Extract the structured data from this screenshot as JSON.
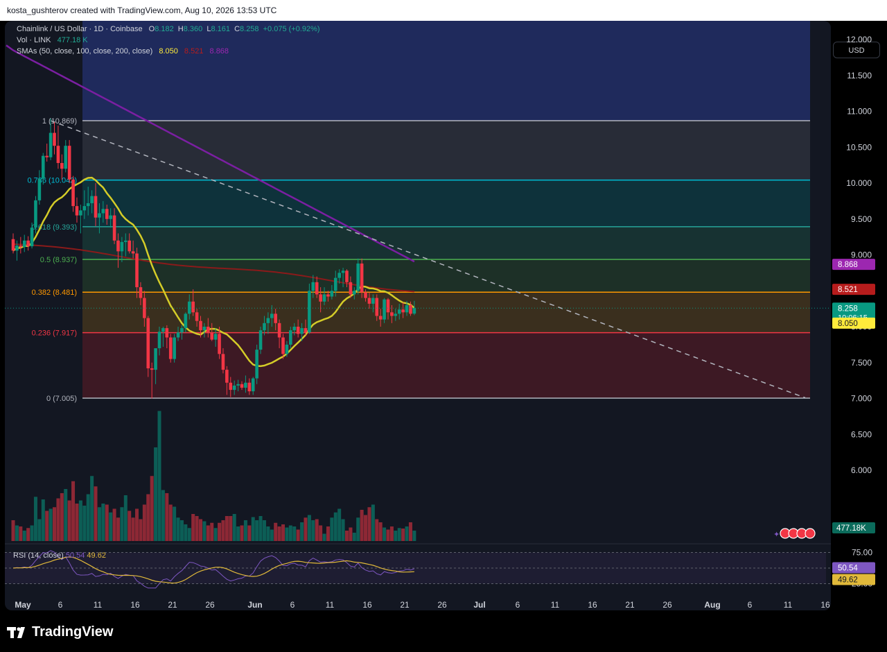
{
  "header": {
    "created_by": "kosta_gushterov created with TradingView.com, Aug 10, 2026 13:53 UTC"
  },
  "legend": {
    "symbol": "Chainlink / US Dollar · 1D · Coinbase",
    "o_label": "O",
    "o": "8.182",
    "h_label": "H",
    "h": "8.360",
    "l_label": "L",
    "l": "8.161",
    "c_label": "C",
    "c": "8.258",
    "change": "+0.075 (+0.92%)",
    "vol_label": "Vol · LINK",
    "vol": "477.18 K",
    "sma_label": "SMAs (50, close, 100, close, 200, close)",
    "sma50": "8.050",
    "sma100": "8.521",
    "sma200": "8.868"
  },
  "currency": "USD",
  "brand": "TradingView",
  "chart_data": {
    "type": "candlestick",
    "symbol": "LINK/USD",
    "timeframe": "1D",
    "x_ticks": [
      "May",
      "6",
      "11",
      "16",
      "21",
      "26",
      "Jun",
      "6",
      "11",
      "16",
      "21",
      "26",
      "Jul",
      "6",
      "11",
      "16",
      "21",
      "26",
      "Aug",
      "6",
      "11",
      "16"
    ],
    "y_ticks": [
      "12.000",
      "11.500",
      "11.000",
      "10.500",
      "10.000",
      "9.500",
      "9.000",
      "8.500",
      "8.000",
      "7.500",
      "7.000",
      "6.500",
      "6.000"
    ],
    "ylim": [
      5.75,
      12.6
    ],
    "fib_levels": [
      {
        "label": "1 (10.869)",
        "value": 10.869
      },
      {
        "label": "0.786 (10.042)",
        "value": 10.042
      },
      {
        "label": "0.618 (9.393)",
        "value": 9.393
      },
      {
        "label": "0.5 (8.937)",
        "value": 8.937
      },
      {
        "label": "0.382 (8.481)",
        "value": 8.481
      },
      {
        "label": "0.236 (7.917)",
        "value": 7.917
      },
      {
        "label": "0 (7.005)",
        "value": 7.005
      }
    ],
    "trendline": {
      "start": [
        10,
        10.87
      ],
      "end": [
        107,
        7.01
      ]
    },
    "price_tags": [
      {
        "text": "8.868",
        "value": 8.868,
        "color": "#9c27b0"
      },
      {
        "text": "8.521",
        "value": 8.521,
        "color": "#b71c1c"
      },
      {
        "text": "8.258",
        "sub": "10:06:15",
        "value": 8.258,
        "color": "#089981"
      },
      {
        "text": "8.050",
        "value": 8.05,
        "color": "#ffeb3b"
      }
    ],
    "volume_tag": "477.18K",
    "rsi": {
      "label": "RSI (14, close)",
      "value": "50.54",
      "ma": "49.62",
      "ticks": [
        "75.00",
        "25.00"
      ]
    },
    "candles": [
      [
        9.22,
        9.3,
        9.02,
        9.06
      ],
      [
        9.06,
        9.2,
        8.92,
        9.13
      ],
      [
        9.13,
        9.25,
        9.02,
        9.11
      ],
      [
        9.11,
        9.28,
        9.04,
        9.2
      ],
      [
        9.2,
        9.26,
        9.06,
        9.12
      ],
      [
        9.12,
        9.45,
        9.09,
        9.38
      ],
      [
        9.38,
        9.82,
        9.3,
        9.76
      ],
      [
        9.76,
        10.18,
        9.7,
        10.06
      ],
      [
        10.06,
        10.42,
        9.98,
        10.38
      ],
      [
        10.38,
        10.55,
        10.3,
        10.36
      ],
      [
        10.36,
        10.9,
        10.32,
        10.7
      ],
      [
        10.7,
        10.85,
        10.4,
        10.52
      ],
      [
        10.52,
        10.8,
        10.2,
        10.28
      ],
      [
        10.28,
        10.4,
        10.05,
        10.2
      ],
      [
        10.2,
        10.6,
        10.15,
        10.52
      ],
      [
        10.52,
        10.6,
        10.0,
        10.05
      ],
      [
        10.05,
        10.1,
        9.6,
        9.68
      ],
      [
        9.68,
        9.8,
        9.45,
        9.55
      ],
      [
        9.55,
        9.7,
        9.3,
        9.62
      ],
      [
        9.62,
        9.9,
        9.5,
        9.68
      ],
      [
        9.68,
        9.95,
        9.55,
        9.72
      ],
      [
        9.72,
        9.9,
        9.58,
        9.82
      ],
      [
        9.82,
        10.0,
        9.4,
        9.52
      ],
      [
        9.52,
        9.72,
        9.3,
        9.58
      ],
      [
        9.58,
        9.75,
        9.45,
        9.64
      ],
      [
        9.64,
        9.7,
        9.42,
        9.5
      ],
      [
        9.5,
        9.65,
        9.38,
        9.55
      ],
      [
        9.55,
        9.65,
        9.15,
        9.2
      ],
      [
        9.2,
        9.3,
        8.82,
        9.05
      ],
      [
        9.05,
        9.25,
        8.9,
        9.18
      ],
      [
        9.18,
        9.3,
        8.98,
        9.2
      ],
      [
        9.2,
        9.3,
        9.02,
        9.05
      ],
      [
        9.05,
        9.2,
        8.95,
        9.02
      ],
      [
        9.02,
        9.1,
        8.4,
        8.55
      ],
      [
        8.55,
        8.62,
        8.3,
        8.4
      ],
      [
        8.4,
        8.5,
        8.0,
        8.12
      ],
      [
        8.12,
        8.15,
        7.3,
        7.42
      ],
      [
        7.42,
        7.5,
        7.0,
        7.4
      ],
      [
        7.4,
        7.7,
        7.2,
        7.7
      ],
      [
        7.7,
        8.0,
        7.6,
        7.93
      ],
      [
        7.93,
        8.0,
        7.72,
        7.98
      ],
      [
        7.98,
        8.02,
        7.7,
        7.85
      ],
      [
        7.85,
        7.9,
        7.5,
        7.55
      ],
      [
        7.55,
        7.9,
        7.5,
        7.85
      ],
      [
        7.85,
        8.0,
        7.8,
        7.92
      ],
      [
        7.92,
        8.02,
        7.82,
        7.98
      ],
      [
        7.98,
        8.2,
        7.92,
        8.18
      ],
      [
        8.18,
        8.45,
        8.1,
        8.35
      ],
      [
        8.35,
        8.52,
        8.15,
        8.2
      ],
      [
        8.2,
        8.25,
        8.0,
        8.08
      ],
      [
        8.08,
        8.15,
        7.85,
        7.95
      ],
      [
        7.95,
        8.05,
        7.85,
        8.0
      ],
      [
        8.0,
        8.12,
        7.85,
        7.92
      ],
      [
        7.92,
        8.05,
        7.8,
        7.82
      ],
      [
        7.82,
        7.98,
        7.72,
        7.9
      ],
      [
        7.9,
        8.0,
        7.55,
        7.62
      ],
      [
        7.62,
        7.7,
        7.35,
        7.4
      ],
      [
        7.4,
        7.45,
        7.05,
        7.22
      ],
      [
        7.22,
        7.3,
        7.02,
        7.12
      ],
      [
        7.12,
        7.25,
        7.05,
        7.18
      ],
      [
        7.18,
        7.26,
        7.1,
        7.2
      ],
      [
        7.2,
        7.24,
        7.12,
        7.15
      ],
      [
        7.15,
        7.32,
        7.08,
        7.22
      ],
      [
        7.22,
        7.28,
        7.05,
        7.1
      ],
      [
        7.1,
        7.3,
        7.05,
        7.28
      ],
      [
        7.28,
        7.75,
        7.2,
        7.68
      ],
      [
        7.68,
        8.0,
        7.62,
        7.95
      ],
      [
        7.95,
        8.15,
        7.88,
        8.05
      ],
      [
        8.05,
        8.2,
        7.9,
        8.12
      ],
      [
        8.12,
        8.3,
        8.0,
        8.18
      ],
      [
        8.18,
        8.25,
        7.95,
        8.05
      ],
      [
        8.05,
        8.1,
        7.7,
        7.85
      ],
      [
        7.85,
        7.9,
        7.55,
        7.62
      ],
      [
        7.62,
        7.8,
        7.58,
        7.75
      ],
      [
        7.75,
        8.0,
        7.7,
        7.95
      ],
      [
        7.95,
        8.05,
        7.88,
        8.0
      ],
      [
        8.0,
        8.1,
        7.85,
        7.9
      ],
      [
        7.9,
        8.05,
        7.8,
        7.98
      ],
      [
        7.98,
        8.1,
        7.88,
        7.92
      ],
      [
        7.92,
        8.6,
        7.9,
        8.5
      ],
      [
        8.5,
        8.72,
        8.4,
        8.62
      ],
      [
        8.62,
        8.7,
        8.4,
        8.45
      ],
      [
        8.45,
        8.55,
        8.2,
        8.35
      ],
      [
        8.35,
        8.55,
        8.3,
        8.45
      ],
      [
        8.45,
        8.5,
        8.35,
        8.42
      ],
      [
        8.42,
        8.58,
        8.38,
        8.5
      ],
      [
        8.5,
        8.78,
        8.42,
        8.68
      ],
      [
        8.68,
        8.8,
        8.6,
        8.75
      ],
      [
        8.75,
        8.82,
        8.55,
        8.78
      ],
      [
        8.78,
        8.8,
        8.55,
        8.62
      ],
      [
        8.62,
        8.7,
        8.4,
        8.45
      ],
      [
        8.45,
        8.55,
        8.38,
        8.5
      ],
      [
        8.5,
        8.95,
        8.45,
        8.88
      ],
      [
        8.88,
        8.95,
        8.4,
        8.48
      ],
      [
        8.48,
        8.52,
        8.35,
        8.4
      ],
      [
        8.4,
        8.48,
        8.25,
        8.32
      ],
      [
        8.32,
        8.45,
        8.2,
        8.4
      ],
      [
        8.4,
        8.45,
        8.08,
        8.15
      ],
      [
        8.15,
        8.25,
        8.0,
        8.1
      ],
      [
        8.1,
        8.4,
        8.05,
        8.38
      ],
      [
        8.38,
        8.4,
        8.1,
        8.2
      ],
      [
        8.2,
        8.3,
        8.05,
        8.15
      ],
      [
        8.15,
        8.25,
        8.08,
        8.18
      ],
      [
        8.18,
        8.32,
        8.1,
        8.24
      ],
      [
        8.24,
        8.34,
        8.12,
        8.2
      ],
      [
        8.2,
        8.36,
        8.15,
        8.3
      ],
      [
        8.3,
        8.35,
        8.15,
        8.18
      ],
      [
        8.182,
        8.36,
        8.161,
        8.258
      ]
    ],
    "volumes": [
      0.4,
      0.3,
      0.28,
      0.2,
      0.25,
      0.3,
      0.85,
      0.42,
      0.8,
      0.58,
      0.62,
      0.65,
      0.82,
      0.92,
      1.0,
      0.78,
      1.15,
      0.72,
      0.78,
      0.68,
      0.9,
      1.25,
      1.05,
      0.65,
      0.72,
      0.7,
      0.55,
      0.62,
      0.45,
      0.65,
      0.88,
      0.58,
      0.45,
      0.62,
      0.42,
      0.7,
      0.9,
      1.25,
      1.8,
      2.5,
      0.98,
      0.92,
      0.7,
      0.66,
      0.45,
      0.4,
      0.32,
      0.25,
      0.52,
      0.48,
      0.42,
      0.38,
      0.3,
      0.35,
      0.25,
      0.35,
      0.4,
      0.48,
      0.48,
      0.52,
      0.28,
      0.3,
      0.4,
      0.3,
      0.46,
      0.4,
      0.48,
      0.4,
      0.28,
      0.22,
      0.35,
      0.28,
      0.32,
      0.26,
      0.3,
      0.28,
      0.22,
      0.36,
      0.45,
      0.5,
      0.4,
      0.42,
      0.3,
      0.14,
      0.28,
      0.45,
      0.55,
      0.62,
      0.42,
      0.2,
      0.26,
      0.16,
      0.45,
      0.6,
      0.5,
      0.65,
      0.7,
      0.42,
      0.36,
      0.26,
      0.22,
      0.28,
      0.2,
      0.25,
      0.24,
      0.28,
      0.36,
      0.2
    ]
  }
}
